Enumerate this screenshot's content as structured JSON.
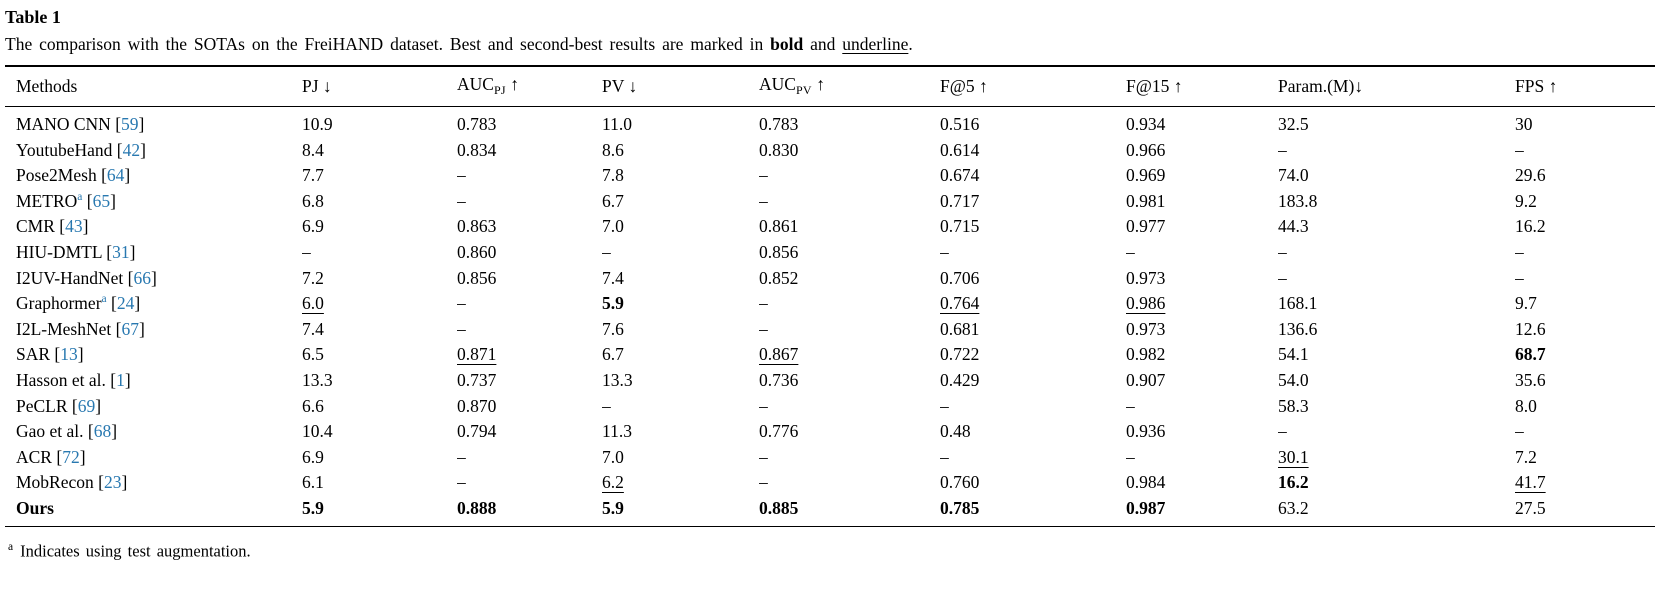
{
  "colors": {
    "citation_blue": "#2878b0",
    "text": "#000000",
    "rule": "#000000"
  },
  "table": {
    "label": "Table 1",
    "caption": {
      "prefix": "The comparison with the SOTAs on the FreiHAND dataset. Best and second-best results are marked in ",
      "bold_word": "bold",
      "mid": " and ",
      "underline_word": "underline",
      "suffix": "."
    },
    "headers": [
      {
        "key": "methods",
        "label": "Methods",
        "sub": "",
        "arrow": "",
        "spaced": false
      },
      {
        "key": "pj",
        "label": "PJ",
        "sub": "",
        "arrow": "↓",
        "spaced": true
      },
      {
        "key": "auc_pj",
        "label": "AUC",
        "sub": "PJ",
        "arrow": "↑",
        "spaced": true
      },
      {
        "key": "pv",
        "label": "PV",
        "sub": "",
        "arrow": "↓",
        "spaced": true
      },
      {
        "key": "auc_pv",
        "label": "AUC",
        "sub": "PV",
        "arrow": "↑",
        "spaced": true
      },
      {
        "key": "f5",
        "label": "F@5",
        "sub": "",
        "arrow": "↑",
        "spaced": true
      },
      {
        "key": "f15",
        "label": "F@15",
        "sub": "",
        "arrow": "↑",
        "spaced": true
      },
      {
        "key": "param",
        "label": "Param.(M)",
        "sub": "",
        "arrow": "↓",
        "spaced": false
      },
      {
        "key": "fps",
        "label": "FPS",
        "sub": "",
        "arrow": "↑",
        "spaced": true
      }
    ],
    "rows": [
      {
        "method": "MANO CNN",
        "sup": "",
        "cite": "59",
        "bold": false,
        "cells": [
          {
            "v": "10.9",
            "s": "n"
          },
          {
            "v": "0.783",
            "s": "n"
          },
          {
            "v": "11.0",
            "s": "n"
          },
          {
            "v": "0.783",
            "s": "n"
          },
          {
            "v": "0.516",
            "s": "n"
          },
          {
            "v": "0.934",
            "s": "n"
          },
          {
            "v": "32.5",
            "s": "n"
          },
          {
            "v": "30",
            "s": "n"
          }
        ]
      },
      {
        "method": "YoutubeHand",
        "sup": "",
        "cite": "42",
        "bold": false,
        "cells": [
          {
            "v": "8.4",
            "s": "n"
          },
          {
            "v": "0.834",
            "s": "n"
          },
          {
            "v": "8.6",
            "s": "n"
          },
          {
            "v": "0.830",
            "s": "n"
          },
          {
            "v": "0.614",
            "s": "n"
          },
          {
            "v": "0.966",
            "s": "n"
          },
          {
            "v": "–",
            "s": "n"
          },
          {
            "v": "–",
            "s": "n"
          }
        ]
      },
      {
        "method": "Pose2Mesh",
        "sup": "",
        "cite": "64",
        "bold": false,
        "cells": [
          {
            "v": "7.7",
            "s": "n"
          },
          {
            "v": "–",
            "s": "n"
          },
          {
            "v": "7.8",
            "s": "n"
          },
          {
            "v": "–",
            "s": "n"
          },
          {
            "v": "0.674",
            "s": "n"
          },
          {
            "v": "0.969",
            "s": "n"
          },
          {
            "v": "74.0",
            "s": "n"
          },
          {
            "v": "29.6",
            "s": "n"
          }
        ]
      },
      {
        "method": "METRO",
        "sup": "a",
        "cite": "65",
        "bold": false,
        "cells": [
          {
            "v": "6.8",
            "s": "n"
          },
          {
            "v": "–",
            "s": "n"
          },
          {
            "v": "6.7",
            "s": "n"
          },
          {
            "v": "–",
            "s": "n"
          },
          {
            "v": "0.717",
            "s": "n"
          },
          {
            "v": "0.981",
            "s": "n"
          },
          {
            "v": "183.8",
            "s": "n"
          },
          {
            "v": "9.2",
            "s": "n"
          }
        ]
      },
      {
        "method": "CMR",
        "sup": "",
        "cite": "43",
        "bold": false,
        "cells": [
          {
            "v": "6.9",
            "s": "n"
          },
          {
            "v": "0.863",
            "s": "n"
          },
          {
            "v": "7.0",
            "s": "n"
          },
          {
            "v": "0.861",
            "s": "n"
          },
          {
            "v": "0.715",
            "s": "n"
          },
          {
            "v": "0.977",
            "s": "n"
          },
          {
            "v": "44.3",
            "s": "n"
          },
          {
            "v": "16.2",
            "s": "n"
          }
        ]
      },
      {
        "method": "HIU-DMTL",
        "sup": "",
        "cite": "31",
        "bold": false,
        "cells": [
          {
            "v": "–",
            "s": "n"
          },
          {
            "v": "0.860",
            "s": "n"
          },
          {
            "v": "–",
            "s": "n"
          },
          {
            "v": "0.856",
            "s": "n"
          },
          {
            "v": "–",
            "s": "n"
          },
          {
            "v": "–",
            "s": "n"
          },
          {
            "v": "–",
            "s": "n"
          },
          {
            "v": "–",
            "s": "n"
          }
        ]
      },
      {
        "method": "I2UV-HandNet",
        "sup": "",
        "cite": "66",
        "bold": false,
        "cells": [
          {
            "v": "7.2",
            "s": "n"
          },
          {
            "v": "0.856",
            "s": "n"
          },
          {
            "v": "7.4",
            "s": "n"
          },
          {
            "v": "0.852",
            "s": "n"
          },
          {
            "v": "0.706",
            "s": "n"
          },
          {
            "v": "0.973",
            "s": "n"
          },
          {
            "v": "–",
            "s": "n"
          },
          {
            "v": "–",
            "s": "n"
          }
        ]
      },
      {
        "method": "Graphormer",
        "sup": "a",
        "cite": "24",
        "bold": false,
        "cells": [
          {
            "v": "6.0",
            "s": "u"
          },
          {
            "v": "–",
            "s": "n"
          },
          {
            "v": "5.9",
            "s": "b"
          },
          {
            "v": "–",
            "s": "n"
          },
          {
            "v": "0.764",
            "s": "u"
          },
          {
            "v": "0.986",
            "s": "u"
          },
          {
            "v": "168.1",
            "s": "n"
          },
          {
            "v": "9.7",
            "s": "n"
          }
        ]
      },
      {
        "method": "I2L-MeshNet",
        "sup": "",
        "cite": "67",
        "bold": false,
        "cells": [
          {
            "v": "7.4",
            "s": "n"
          },
          {
            "v": "–",
            "s": "n"
          },
          {
            "v": "7.6",
            "s": "n"
          },
          {
            "v": "–",
            "s": "n"
          },
          {
            "v": "0.681",
            "s": "n"
          },
          {
            "v": "0.973",
            "s": "n"
          },
          {
            "v": "136.6",
            "s": "n"
          },
          {
            "v": "12.6",
            "s": "n"
          }
        ]
      },
      {
        "method": "SAR",
        "sup": "",
        "cite": "13",
        "bold": false,
        "cells": [
          {
            "v": "6.5",
            "s": "n"
          },
          {
            "v": "0.871",
            "s": "u"
          },
          {
            "v": "6.7",
            "s": "n"
          },
          {
            "v": "0.867",
            "s": "u"
          },
          {
            "v": "0.722",
            "s": "n"
          },
          {
            "v": "0.982",
            "s": "n"
          },
          {
            "v": "54.1",
            "s": "n"
          },
          {
            "v": "68.7",
            "s": "b"
          }
        ]
      },
      {
        "method": "Hasson et al.",
        "sup": "",
        "cite": "1",
        "bold": false,
        "cells": [
          {
            "v": "13.3",
            "s": "n"
          },
          {
            "v": "0.737",
            "s": "n"
          },
          {
            "v": "13.3",
            "s": "n"
          },
          {
            "v": "0.736",
            "s": "n"
          },
          {
            "v": "0.429",
            "s": "n"
          },
          {
            "v": "0.907",
            "s": "n"
          },
          {
            "v": "54.0",
            "s": "n"
          },
          {
            "v": "35.6",
            "s": "n"
          }
        ]
      },
      {
        "method": "PeCLR",
        "sup": "",
        "cite": "69",
        "bold": false,
        "cells": [
          {
            "v": "6.6",
            "s": "n"
          },
          {
            "v": "0.870",
            "s": "n"
          },
          {
            "v": "–",
            "s": "n"
          },
          {
            "v": "–",
            "s": "n"
          },
          {
            "v": "–",
            "s": "n"
          },
          {
            "v": "–",
            "s": "n"
          },
          {
            "v": "58.3",
            "s": "n"
          },
          {
            "v": "8.0",
            "s": "n"
          }
        ]
      },
      {
        "method": "Gao et al.",
        "sup": "",
        "cite": "68",
        "bold": false,
        "cells": [
          {
            "v": "10.4",
            "s": "n"
          },
          {
            "v": "0.794",
            "s": "n"
          },
          {
            "v": "11.3",
            "s": "n"
          },
          {
            "v": "0.776",
            "s": "n"
          },
          {
            "v": "0.48",
            "s": "n"
          },
          {
            "v": "0.936",
            "s": "n"
          },
          {
            "v": "–",
            "s": "n"
          },
          {
            "v": "–",
            "s": "n"
          }
        ]
      },
      {
        "method": "ACR",
        "sup": "",
        "cite": "72",
        "bold": false,
        "cells": [
          {
            "v": "6.9",
            "s": "n"
          },
          {
            "v": "–",
            "s": "n"
          },
          {
            "v": "7.0",
            "s": "n"
          },
          {
            "v": "–",
            "s": "n"
          },
          {
            "v": "–",
            "s": "n"
          },
          {
            "v": "–",
            "s": "n"
          },
          {
            "v": "30.1",
            "s": "u"
          },
          {
            "v": "7.2",
            "s": "n"
          }
        ]
      },
      {
        "method": "MobRecon",
        "sup": "",
        "cite": "23",
        "bold": false,
        "cells": [
          {
            "v": "6.1",
            "s": "n"
          },
          {
            "v": "–",
            "s": "n"
          },
          {
            "v": "6.2",
            "s": "u"
          },
          {
            "v": "–",
            "s": "n"
          },
          {
            "v": "0.760",
            "s": "n"
          },
          {
            "v": "0.984",
            "s": "n"
          },
          {
            "v": "16.2",
            "s": "b"
          },
          {
            "v": "41.7",
            "s": "u"
          }
        ]
      },
      {
        "method": "Ours",
        "sup": "",
        "cite": "",
        "bold": true,
        "cells": [
          {
            "v": "5.9",
            "s": "b"
          },
          {
            "v": "0.888",
            "s": "b"
          },
          {
            "v": "5.9",
            "s": "b"
          },
          {
            "v": "0.885",
            "s": "b"
          },
          {
            "v": "0.785",
            "s": "b"
          },
          {
            "v": "0.987",
            "s": "b"
          },
          {
            "v": "63.2",
            "s": "n"
          },
          {
            "v": "27.5",
            "s": "n"
          }
        ]
      }
    ],
    "footnote": {
      "marker": "a",
      "text": "Indicates using test augmentation."
    }
  }
}
